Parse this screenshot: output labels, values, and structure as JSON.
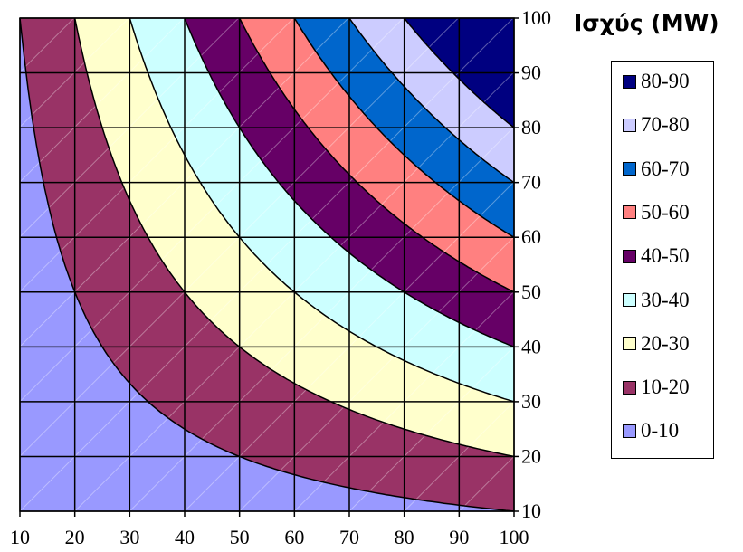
{
  "title": "Ισχύς (MW)",
  "chart_data": {
    "type": "contour",
    "title": "Ισχύς (MW)",
    "x_ticks": [
      10,
      20,
      30,
      40,
      50,
      60,
      70,
      80,
      90,
      100
    ],
    "y_ticks": [
      10,
      20,
      30,
      40,
      50,
      60,
      70,
      80,
      90,
      100
    ],
    "xlim": [
      10,
      100
    ],
    "ylim": [
      10,
      100
    ],
    "y_axis_side": "right",
    "grid": true,
    "legend_position": "right",
    "surface": "power = x * y / 100 (MW)",
    "levels": [
      {
        "label": "0-10",
        "min": 0,
        "max": 10,
        "color": "#9999ff"
      },
      {
        "label": "10-20",
        "min": 10,
        "max": 20,
        "color": "#993366"
      },
      {
        "label": "20-30",
        "min": 20,
        "max": 30,
        "color": "#ffffcc"
      },
      {
        "label": "30-40",
        "min": 30,
        "max": 40,
        "color": "#ccffff"
      },
      {
        "label": "40-50",
        "min": 40,
        "max": 50,
        "color": "#660066"
      },
      {
        "label": "50-60",
        "min": 50,
        "max": 60,
        "color": "#ff8080"
      },
      {
        "label": "60-70",
        "min": 60,
        "max": 70,
        "color": "#0066cc"
      },
      {
        "label": "70-80",
        "min": 70,
        "max": 80,
        "color": "#ccccff"
      },
      {
        "label": "80-90",
        "min": 80,
        "max": 90,
        "color": "#000080"
      }
    ]
  }
}
